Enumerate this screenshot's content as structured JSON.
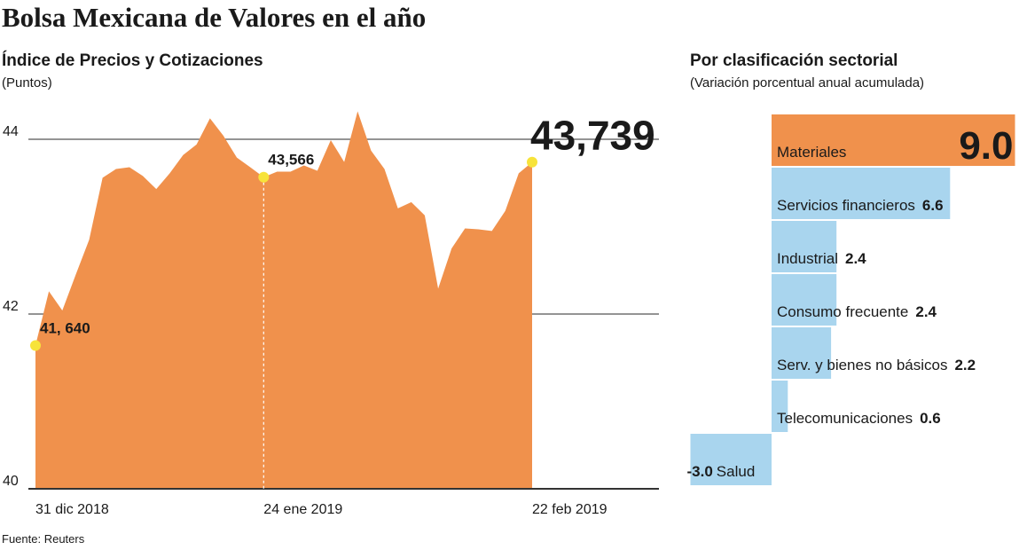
{
  "title": "Bolsa Mexicana de Valores en el año",
  "source": "Fuente: Reuters",
  "chart_data": [
    {
      "type": "area",
      "title": "Índice de Precios y Cotizaciones",
      "subtitle": "(Puntos)",
      "color": "#f0914c",
      "categories": [
        "31 dic 2018",
        null,
        null,
        null,
        null,
        null,
        null,
        null,
        null,
        null,
        null,
        null,
        null,
        null,
        null,
        null,
        null,
        "24 ene 2019",
        null,
        null,
        null,
        null,
        null,
        null,
        null,
        null,
        null,
        null,
        null,
        null,
        null,
        null,
        null,
        null,
        null,
        null,
        null,
        "22 feb 2019"
      ],
      "values": [
        41.64,
        42.26,
        42.04,
        42.45,
        42.85,
        43.56,
        43.66,
        43.68,
        43.58,
        43.43,
        43.61,
        43.82,
        43.94,
        44.24,
        44.04,
        43.79,
        43.68,
        43.566,
        43.63,
        43.63,
        43.7,
        43.64,
        43.99,
        43.74,
        44.32,
        43.87,
        43.66,
        43.21,
        43.28,
        43.13,
        42.29,
        42.75,
        42.98,
        42.97,
        42.95,
        43.18,
        43.61,
        43.739
      ],
      "value_labels": [
        "41, 640",
        null,
        null,
        null,
        null,
        null,
        null,
        null,
        null,
        null,
        null,
        null,
        null,
        null,
        null,
        null,
        null,
        "43,566",
        null,
        null,
        null,
        null,
        null,
        null,
        null,
        null,
        null,
        null,
        null,
        null,
        null,
        null,
        null,
        null,
        null,
        null,
        null,
        "43,739"
      ],
      "ylim": [
        40,
        44.4
      ],
      "yticks": [
        40,
        42,
        44
      ],
      "grid": true
    },
    {
      "type": "hbar",
      "title": "Por clasificación sectorial",
      "subtitle": "(Variación porcentual anual acumulada)",
      "categories": [
        "Materiales",
        "Servicios financieros",
        "Industrial",
        "Consumo frecuente",
        "Serv. y bienes no básicos",
        "Telecomunicaciones",
        "Salud"
      ],
      "values": [
        9.0,
        6.6,
        2.4,
        2.4,
        2.2,
        0.6,
        -3.0
      ],
      "value_labels": [
        "9.0",
        "6.6",
        "2.4",
        "2.4",
        "2.2",
        "0.6",
        "-3.0"
      ],
      "colors": [
        "#f0914c",
        "#a9d5ee",
        "#a9d5ee",
        "#a9d5ee",
        "#a9d5ee",
        "#a9d5ee",
        "#a9d5ee"
      ]
    }
  ]
}
